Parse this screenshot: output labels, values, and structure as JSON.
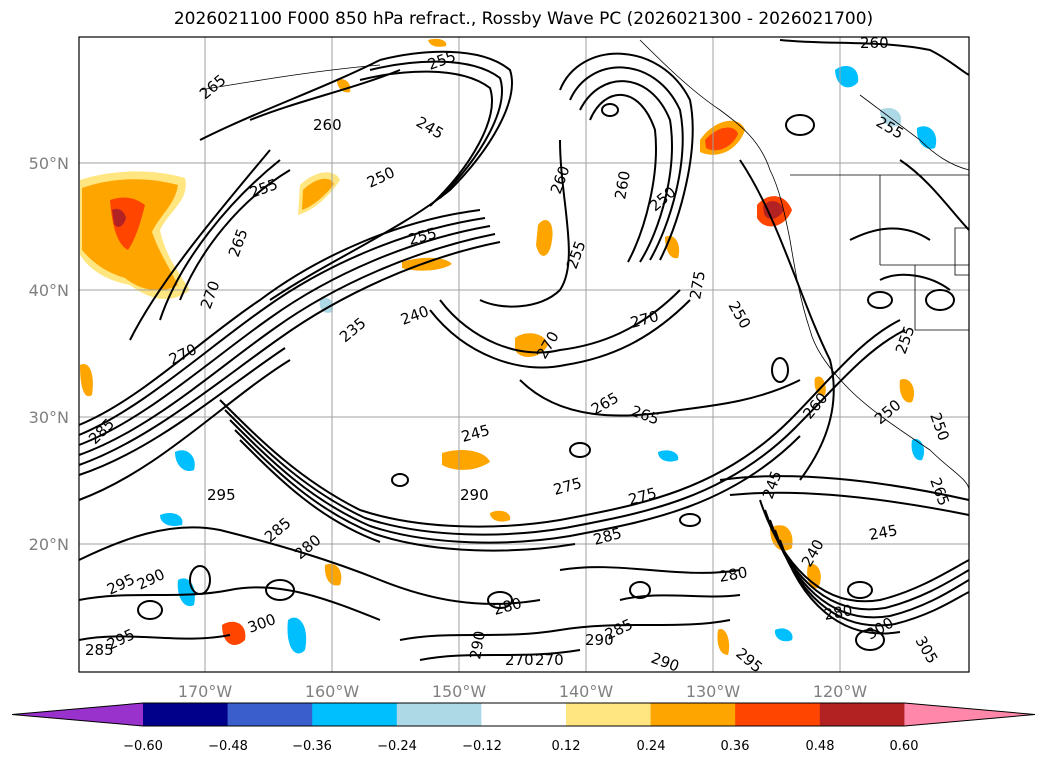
{
  "title": "2026021100 F000 850 hPa refract., Rossby Wave PC (2026021300 - 2026021700)",
  "axes": {
    "lat_labels": [
      "50°N",
      "40°N",
      "30°N",
      "20°N"
    ],
    "lon_labels": [
      "170°W",
      "160°W",
      "150°W",
      "140°W",
      "130°W",
      "120°W"
    ]
  },
  "colorbar": {
    "ticks": [
      "−0.60",
      "−0.48",
      "−0.36",
      "−0.24",
      "−0.12",
      "0.12",
      "0.24",
      "0.36",
      "0.48",
      "0.60"
    ],
    "colors": [
      "#9932cc",
      "#00008b",
      "#3a5fcd",
      "#00bfff",
      "#add8e6",
      "#ffffff",
      "#ffe680",
      "#ffa500",
      "#ff4500",
      "#b22222",
      "#ff88aa"
    ]
  },
  "contour_labels": [
    "265",
    "255",
    "245",
    "260",
    "255",
    "250",
    "265",
    "270",
    "235",
    "240",
    "270",
    "255",
    "260",
    "260",
    "250",
    "255",
    "270",
    "275",
    "265",
    "245",
    "265",
    "270",
    "260",
    "250",
    "255",
    "250",
    "285",
    "295",
    "275",
    "275",
    "285",
    "280",
    "295",
    "290",
    "280",
    "300",
    "285",
    "290",
    "280",
    "285",
    "290",
    "295",
    "300",
    "305",
    "245",
    "240",
    "280",
    "290",
    "270",
    "270",
    "285",
    "295",
    "265",
    "245",
    "255",
    "250",
    "260",
    "290"
  ]
}
